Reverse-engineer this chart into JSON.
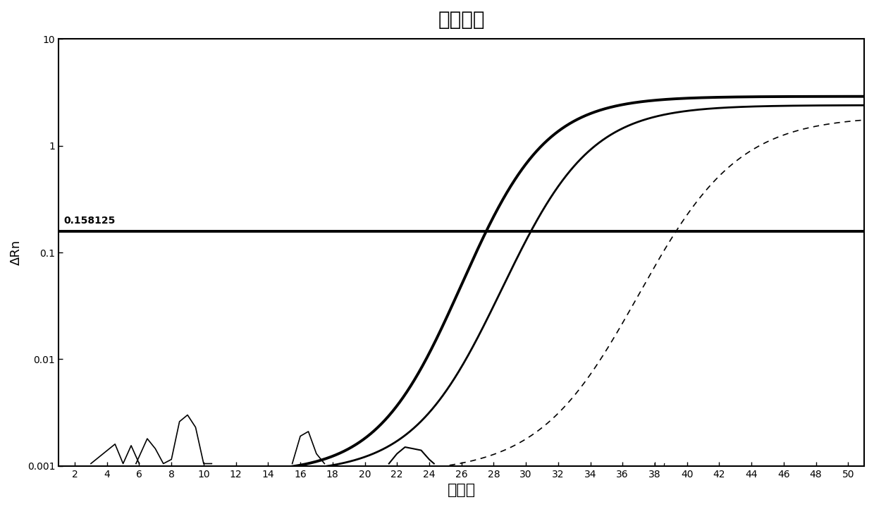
{
  "title": "扩增图谱",
  "xlabel": "循环数",
  "ylabel": "ΔRn",
  "threshold": 0.158125,
  "threshold_label": "0.158125",
  "xlim": [
    1,
    51
  ],
  "ylim": [
    0.001,
    10
  ],
  "xticks": [
    2,
    4,
    6,
    8,
    10,
    12,
    14,
    16,
    18,
    20,
    22,
    24,
    26,
    28,
    30,
    32,
    34,
    36,
    38,
    40,
    42,
    44,
    46,
    48,
    50
  ],
  "background_color": "#ffffff",
  "curves": [
    {
      "ct": 26.0,
      "plateau": 2.9,
      "lw": 2.8,
      "k": 0.38,
      "color": "#000000",
      "dashed": false
    },
    {
      "ct": 28.5,
      "plateau": 2.4,
      "lw": 2.0,
      "k": 0.36,
      "color": "#000000",
      "dashed": false
    },
    {
      "ct": 37.0,
      "plateau": 1.9,
      "lw": 1.2,
      "k": 0.32,
      "color": "#000000",
      "dashed": true
    }
  ],
  "noise_spikes": [
    {
      "x": [
        3.0,
        4.5,
        5.0,
        5.5,
        6.0
      ],
      "y": [
        0.00105,
        0.0016,
        0.00105,
        0.00155,
        0.00105
      ],
      "lw": 1.2
    },
    {
      "x": [
        5.8,
        6.5,
        7.0,
        7.5,
        8.0,
        8.5,
        9.0,
        9.5,
        10.0,
        10.5
      ],
      "y": [
        0.00105,
        0.0018,
        0.00145,
        0.00105,
        0.00115,
        0.0026,
        0.003,
        0.0023,
        0.00105,
        0.00105
      ],
      "lw": 1.2
    },
    {
      "x": [
        15.5,
        16.0,
        16.5,
        17.0,
        17.5
      ],
      "y": [
        0.00105,
        0.0019,
        0.0021,
        0.0013,
        0.00105
      ],
      "lw": 1.2
    },
    {
      "x": [
        21.5,
        22.0,
        22.5,
        23.0,
        23.5,
        24.0,
        24.3
      ],
      "y": [
        0.00105,
        0.0013,
        0.0015,
        0.00145,
        0.0014,
        0.00115,
        0.00105
      ],
      "lw": 1.5
    },
    {
      "x": [
        38.0,
        38.3,
        38.6
      ],
      "y": [
        0.00105,
        0.0004,
        0.00105
      ],
      "lw": 0.9
    }
  ],
  "title_fontsize": 20,
  "xlabel_fontsize": 16,
  "ylabel_fontsize": 13,
  "tick_fontsize": 10
}
